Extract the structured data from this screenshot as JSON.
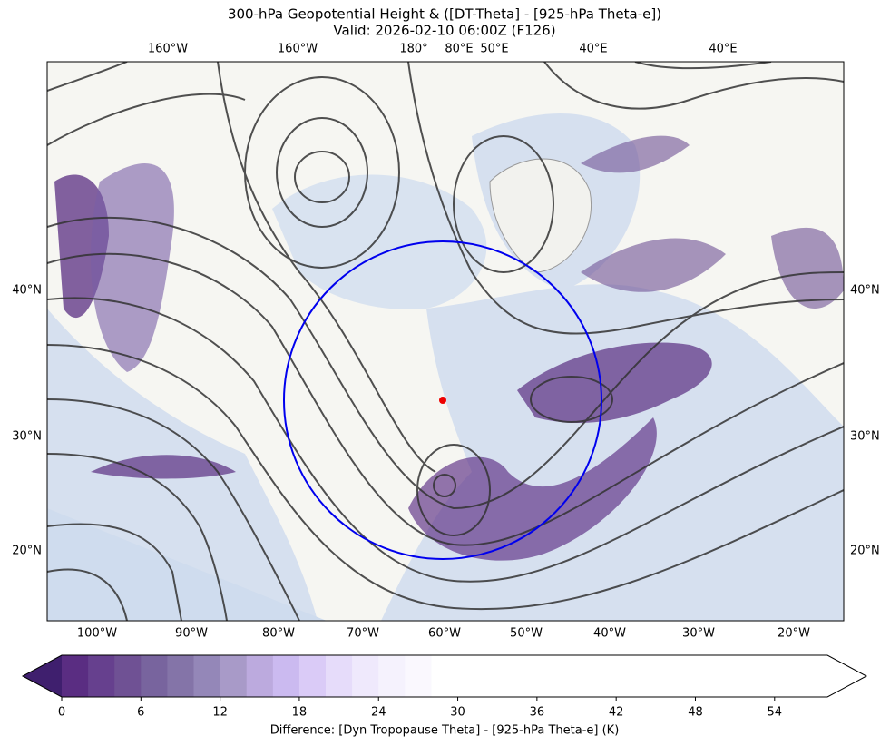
{
  "map": {
    "title": "300-hPa Geopotential Height & ([DT-Theta] - [925-hPa Theta-e])",
    "subtitle": "Valid: 2026-02-10 06:00Z (F126)",
    "top_labels": [
      "160°W",
      "160°W",
      "180°",
      "80°E",
      "50°E",
      "40°E",
      "40°E"
    ],
    "left_labels": [
      "40°N",
      "30°N",
      "20°N"
    ],
    "right_labels": [
      "40°N",
      "30°N",
      "20°N"
    ],
    "bottom_labels": [
      "100°W",
      "90°W",
      "80°W",
      "70°W",
      "60°W",
      "50°W",
      "40°W",
      "30°W",
      "20°W"
    ]
  },
  "colorbar": {
    "label": "Difference: [Dyn Tropopause Theta] - [925-hPa Theta-e] (K)",
    "lim": [
      0,
      58
    ],
    "ticks": [
      0,
      6,
      12,
      18,
      24,
      30,
      36,
      42,
      48,
      54
    ],
    "under_color": "#3f1f6e",
    "over_color": "#ffffff",
    "colors": [
      "#5a2d82",
      "#66408e",
      "#6f5194",
      "#78649e",
      "#8474a8",
      "#9487b8",
      "#a89ac8",
      "#bcaade",
      "#cbbaf0",
      "#dacbf7",
      "#e6dcfa",
      "#efe9fc",
      "#f5f2fd",
      "#faf8fe",
      "#ffffff",
      "#ffffff",
      "#ffffff",
      "#ffffff",
      "#ffffff",
      "#ffffff",
      "#ffffff",
      "#ffffff",
      "#ffffff",
      "#ffffff",
      "#ffffff",
      "#ffffff",
      "#ffffff",
      "#ffffff",
      "#ffffff"
    ]
  }
}
